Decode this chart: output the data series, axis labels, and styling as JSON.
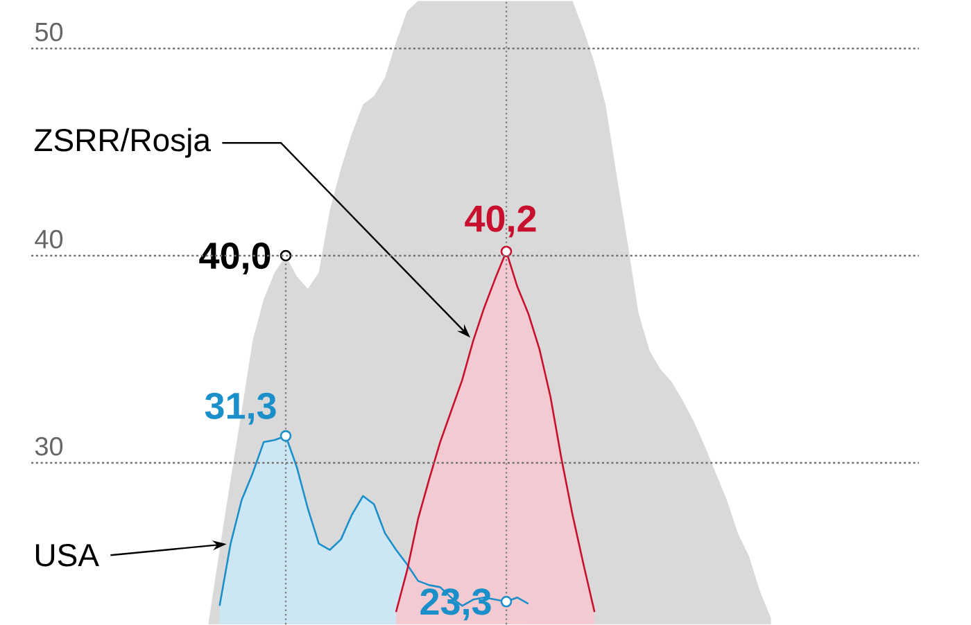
{
  "chart_data": {
    "type": "area",
    "categories": [
      null,
      null,
      null,
      null,
      null,
      null,
      null,
      null,
      null,
      null,
      null,
      null,
      null,
      null,
      null,
      null,
      null,
      null,
      null,
      null,
      null,
      null,
      null,
      null,
      null,
      null,
      null,
      null,
      null,
      null,
      null,
      null,
      null,
      null,
      null,
      null,
      null,
      null,
      null,
      null,
      null,
      null,
      null,
      null,
      null,
      null,
      null,
      null,
      null,
      null,
      null,
      null
    ],
    "ylim": [
      22.2,
      52.3
    ],
    "yticks": [
      30,
      40,
      50
    ],
    "grid": "y",
    "series": [
      {
        "color": "#d9d9d9",
        "values": [
          22.3,
          25.8,
          29.2,
          32.5,
          35.9,
          37.9,
          39.2,
          40.0,
          39.0,
          38.4,
          39.2,
          42.2,
          44.2,
          45.9,
          47.3,
          47.7,
          48.6,
          50.3,
          51.8,
          52.3,
          52.3,
          52.3,
          52.3,
          52.3,
          52.3,
          52.3,
          52.3,
          52.3,
          52.3,
          52.3,
          52.3,
          52.3,
          52.3,
          52.3,
          50.9,
          49.3,
          47.3,
          43.9,
          40.6,
          37.2,
          35.4,
          34.5,
          33.9,
          33.0,
          32.0,
          30.8,
          29.5,
          28.2,
          26.6,
          25.5,
          23.8,
          22.5
        ],
        "value_labels": [
          null,
          null,
          null,
          null,
          null,
          null,
          null,
          "40,0",
          null,
          null,
          null,
          null,
          null,
          null,
          null,
          null,
          null,
          null,
          null,
          null,
          null,
          null,
          null,
          null,
          null,
          null,
          null,
          null,
          null,
          null,
          null,
          null,
          null,
          null,
          null,
          null,
          null,
          null,
          null,
          null,
          null,
          null,
          null,
          null,
          null,
          null,
          null,
          null,
          null,
          null,
          null,
          null
        ]
      },
      {
        "name": "USA",
        "color": "#1a8fc9",
        "values": [
          null,
          23.1,
          26.1,
          28.2,
          29.5,
          31.0,
          31.1,
          31.3,
          29.8,
          27.8,
          26.1,
          25.8,
          26.3,
          27.5,
          28.4,
          28.0,
          26.6,
          25.8,
          25.1,
          24.3,
          24.1,
          24.0,
          23.5,
          23.1,
          23.4,
          23.5,
          23.4,
          23.3,
          23.5,
          23.2,
          null,
          null,
          null,
          null,
          null,
          null,
          null,
          null,
          null,
          null,
          null,
          null,
          null,
          null,
          null,
          null,
          null,
          null,
          null,
          null,
          null,
          null
        ],
        "value_labels": [
          null,
          null,
          null,
          null,
          null,
          null,
          null,
          "31,3",
          null,
          null,
          null,
          null,
          null,
          null,
          null,
          null,
          null,
          null,
          null,
          null,
          null,
          null,
          null,
          null,
          null,
          null,
          null,
          "23,3",
          null,
          null,
          null,
          null,
          null,
          null,
          null,
          null,
          null,
          null,
          null,
          null,
          null,
          null,
          null,
          null,
          null,
          null,
          null,
          null,
          null,
          null,
          null,
          null
        ]
      },
      {
        "name": "ZSRR/Rosja",
        "color": "#c8102e",
        "values": [
          null,
          null,
          null,
          null,
          null,
          null,
          null,
          null,
          null,
          null,
          null,
          null,
          null,
          null,
          null,
          null,
          null,
          22.8,
          24.8,
          27.3,
          29.2,
          31.0,
          32.5,
          34.0,
          35.9,
          37.5,
          38.9,
          40.2,
          38.5,
          37.2,
          35.5,
          33.2,
          30.2,
          27.5,
          25.1,
          22.8,
          null,
          null,
          null,
          null,
          null,
          null,
          null,
          null,
          null,
          null,
          null,
          null,
          null,
          null,
          null,
          null
        ],
        "value_labels": [
          null,
          null,
          null,
          null,
          null,
          null,
          null,
          null,
          null,
          null,
          null,
          null,
          null,
          null,
          null,
          null,
          null,
          null,
          null,
          null,
          null,
          null,
          null,
          null,
          null,
          null,
          null,
          "40,2",
          null,
          null,
          null,
          null,
          null,
          null,
          null,
          null,
          null,
          null,
          null,
          null,
          null,
          null,
          null,
          null,
          null,
          null,
          null,
          null,
          null,
          null,
          null,
          null
        ]
      }
    ]
  }
}
